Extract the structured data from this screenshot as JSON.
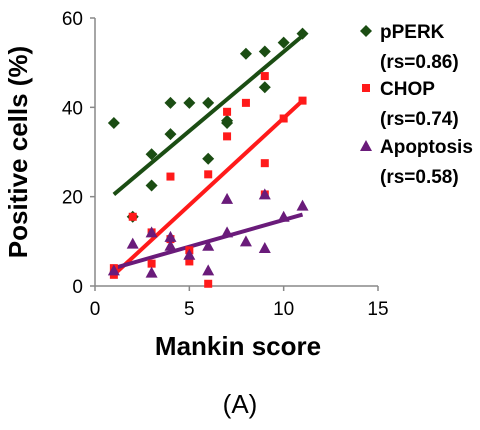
{
  "panel_label": "(A)",
  "chart_data": {
    "type": "scatter",
    "xlabel": "Mankin score",
    "ylabel": "Positive cells (%)",
    "xlim": [
      0,
      15
    ],
    "ylim": [
      0,
      60
    ],
    "x_ticks": [
      "0",
      "5",
      "10",
      "15"
    ],
    "y_ticks": [
      "0",
      "20",
      "40",
      "60"
    ],
    "grid": false,
    "legend_position": "right",
    "series": [
      {
        "name": "pPERK",
        "stat": "(rs=0.86)",
        "color": "#1b4d13",
        "marker": "diamond",
        "points": [
          [
            1,
            36.5
          ],
          [
            2,
            15.5
          ],
          [
            3,
            29.5
          ],
          [
            3,
            22.5
          ],
          [
            4,
            41
          ],
          [
            4,
            34
          ],
          [
            5,
            41
          ],
          [
            6,
            41
          ],
          [
            6,
            28.5
          ],
          [
            7,
            37
          ],
          [
            7,
            36.5
          ],
          [
            8,
            52
          ],
          [
            9,
            52.5
          ],
          [
            9,
            44.5
          ],
          [
            10,
            54.5
          ],
          [
            11,
            56.5
          ]
        ],
        "trend": [
          [
            1,
            20.5
          ],
          [
            11,
            56
          ]
        ]
      },
      {
        "name": "CHOP",
        "stat": "(rs=0.74)",
        "color": "#ff1a1a",
        "marker": "square",
        "points": [
          [
            1,
            4
          ],
          [
            1,
            2.5
          ],
          [
            2,
            15.5
          ],
          [
            3,
            12
          ],
          [
            3,
            5
          ],
          [
            4,
            24.5
          ],
          [
            4,
            10.5
          ],
          [
            5,
            5.5
          ],
          [
            5,
            8
          ],
          [
            6,
            25
          ],
          [
            6,
            0.5
          ],
          [
            7,
            39
          ],
          [
            7,
            33.5
          ],
          [
            8,
            41
          ],
          [
            9,
            47
          ],
          [
            9,
            27.5
          ],
          [
            9,
            20.5
          ],
          [
            10,
            37.5
          ],
          [
            11,
            41.5
          ]
        ],
        "trend": [
          [
            1,
            2.5
          ],
          [
            11,
            41.5
          ]
        ]
      },
      {
        "name": "Apoptosis",
        "stat": "(rs=0.58)",
        "color": "#6a1b7a",
        "marker": "triangle",
        "points": [
          [
            1,
            3.5
          ],
          [
            2,
            9.5
          ],
          [
            3,
            12
          ],
          [
            3,
            3
          ],
          [
            4,
            11
          ],
          [
            4,
            9
          ],
          [
            5,
            7
          ],
          [
            6,
            9
          ],
          [
            6,
            3.5
          ],
          [
            7,
            19.5
          ],
          [
            7,
            12
          ],
          [
            8,
            10
          ],
          [
            9,
            20.5
          ],
          [
            9,
            8.5
          ],
          [
            10,
            15.5
          ],
          [
            11,
            18
          ]
        ],
        "trend": [
          [
            1,
            4
          ],
          [
            11,
            16
          ]
        ]
      }
    ]
  }
}
